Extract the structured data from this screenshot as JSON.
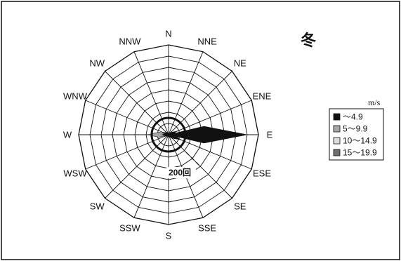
{
  "chart_data": {
    "type": "wind-rose",
    "title": "冬",
    "unit": "m/s",
    "directions": [
      "N",
      "NNE",
      "NE",
      "ENE",
      "E",
      "ESE",
      "SE",
      "SSE",
      "S",
      "SSW",
      "SW",
      "WSW",
      "W",
      "WNW",
      "NW",
      "NNW"
    ],
    "rings": 8,
    "ring_step": 50,
    "max_value": 400,
    "scale_label": "200回",
    "scale_label_value": 200,
    "calm_circle_value": 75,
    "series": [
      {
        "name": "〜4.9",
        "color": "#111111",
        "values": [
          0,
          10,
          20,
          40,
          350,
          60,
          25,
          12,
          8,
          10,
          12,
          20,
          30,
          25,
          20,
          10
        ]
      },
      {
        "name": "5〜9.9",
        "color": "#a6a6a6",
        "values": [
          0,
          0,
          0,
          0,
          0,
          0,
          0,
          0,
          0,
          0,
          0,
          0,
          95,
          30,
          0,
          0
        ]
      },
      {
        "name": "10〜14.9",
        "color": "#dddddd",
        "values": [
          0,
          0,
          0,
          0,
          0,
          0,
          0,
          0,
          0,
          0,
          0,
          0,
          0,
          0,
          0,
          0
        ]
      },
      {
        "name": "15〜19.9",
        "color": "#6e6e6e",
        "values": [
          0,
          0,
          0,
          0,
          0,
          0,
          0,
          0,
          0,
          0,
          0,
          0,
          0,
          0,
          0,
          0
        ]
      }
    ]
  }
}
